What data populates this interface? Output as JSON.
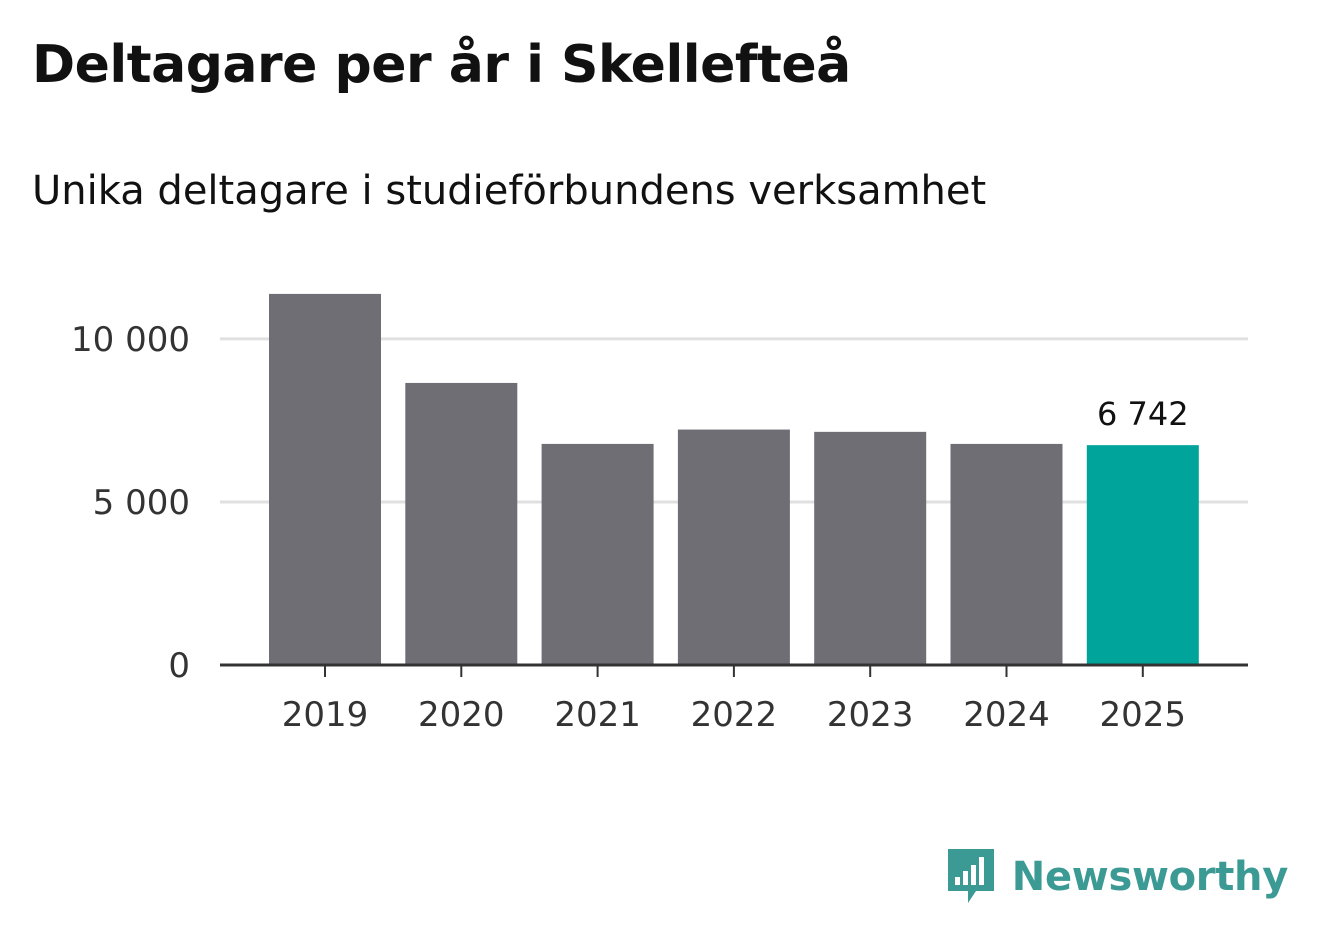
{
  "header": {
    "title": "Deltagare per år i Skellefteå",
    "subtitle": "Unika deltagare i studieförbundens verksamhet"
  },
  "chart_data": {
    "type": "bar",
    "title": "Deltagare per år i Skellefteå",
    "subtitle": "Unika deltagare i studieförbundens verksamhet",
    "xlabel": "",
    "ylabel": "",
    "categories": [
      "2019",
      "2020",
      "2021",
      "2022",
      "2023",
      "2024",
      "2025"
    ],
    "values": [
      11380,
      8650,
      6780,
      7220,
      7150,
      6780,
      6742
    ],
    "highlight_index": 6,
    "highlight_label": "6 742",
    "ylim": [
      0,
      11500
    ],
    "yticks": [
      0,
      5000,
      10000
    ],
    "ytick_labels": [
      "0",
      "5 000",
      "10 000"
    ],
    "grid": true,
    "colors": {
      "bar": "#6f6e74",
      "highlight": "#00a49a",
      "grid": "#e0e0e0",
      "axis": "#333333"
    }
  },
  "branding": {
    "logo_text": "Newsworthy",
    "logo_icon": "newsworthy-chart-bubble-icon",
    "logo_color": "#3c9a95"
  }
}
